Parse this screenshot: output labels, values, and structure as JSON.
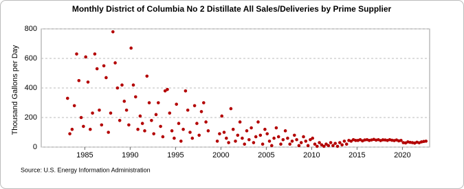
{
  "chart_data": {
    "type": "scatter",
    "title": "Monthly District of Columbia No 2 Distillate All Sales/Deliveries by Prime Supplier",
    "y_label": "Thousand Gallons per Day",
    "source": "Source: U.S. Energy Information Administration",
    "color": "#b30000",
    "grid": true,
    "xlim": [
      1980.2,
      2023
    ],
    "ylim": [
      0,
      800
    ],
    "xticks": [
      1985,
      1990,
      1995,
      2000,
      2005,
      2010,
      2015,
      2020
    ],
    "yticks": [
      0,
      200,
      400,
      600,
      800
    ],
    "x": [
      1983.1,
      1983.35,
      1983.6,
      1983.85,
      1984.1,
      1984.35,
      1984.6,
      1984.85,
      1985.1,
      1985.35,
      1985.6,
      1985.85,
      1986.1,
      1986.35,
      1986.6,
      1986.85,
      1987.1,
      1987.35,
      1987.6,
      1987.85,
      1988.1,
      1988.35,
      1988.6,
      1988.85,
      1989.1,
      1989.35,
      1989.6,
      1989.85,
      1990.1,
      1990.35,
      1990.6,
      1990.85,
      1991.1,
      1991.35,
      1991.6,
      1991.85,
      1992.1,
      1992.35,
      1992.6,
      1992.85,
      1993.1,
      1993.35,
      1993.6,
      1993.85,
      1994.1,
      1994.35,
      1994.6,
      1994.85,
      1995.1,
      1995.35,
      1995.6,
      1995.85,
      1996.1,
      1996.35,
      1996.6,
      1996.85,
      1997.1,
      1997.35,
      1997.6,
      1997.85,
      1998.1,
      1998.35,
      1998.6,
      1999.6,
      1999.85,
      2000.1,
      2000.35,
      2000.6,
      2000.85,
      2001.1,
      2001.35,
      2001.6,
      2001.85,
      2002.1,
      2002.35,
      2002.6,
      2002.85,
      2003.1,
      2003.35,
      2003.6,
      2003.85,
      2004.1,
      2004.35,
      2004.6,
      2004.85,
      2005.1,
      2005.35,
      2005.6,
      2005.85,
      2006.1,
      2006.35,
      2006.6,
      2006.85,
      2007.1,
      2007.35,
      2007.6,
      2007.85,
      2008.1,
      2008.35,
      2008.6,
      2008.85,
      2009.1,
      2009.35,
      2009.6,
      2009.85,
      2010.1,
      2010.35,
      2010.6,
      2010.85,
      2011.1,
      2011.35,
      2011.6,
      2011.85,
      2012.1,
      2012.35,
      2012.6,
      2012.85,
      2013.1,
      2013.35,
      2013.6,
      2013.85,
      2014.1,
      2014.35,
      2014.6,
      2014.85,
      2015.1,
      2015.35,
      2015.6,
      2015.85,
      2016.1,
      2016.35,
      2016.6,
      2016.85,
      2017.1,
      2017.35,
      2017.6,
      2017.85,
      2018.1,
      2018.35,
      2018.6,
      2018.85,
      2019.1,
      2019.35,
      2019.6,
      2019.85,
      2020.1,
      2020.35,
      2020.6,
      2020.85,
      2021.1,
      2021.35,
      2021.6,
      2021.85,
      2022.1,
      2022.35,
      2022.6
    ],
    "values": [
      330,
      90,
      120,
      280,
      630,
      450,
      200,
      140,
      610,
      440,
      120,
      230,
      630,
      530,
      250,
      150,
      550,
      470,
      100,
      230,
      780,
      570,
      400,
      180,
      420,
      310,
      250,
      150,
      670,
      420,
      340,
      120,
      210,
      160,
      110,
      480,
      300,
      180,
      90,
      220,
      300,
      140,
      70,
      380,
      390,
      230,
      110,
      60,
      290,
      160,
      40,
      120,
      380,
      250,
      100,
      60,
      280,
      160,
      80,
      240,
      300,
      170,
      110,
      40,
      90,
      210,
      100,
      60,
      30,
      260,
      120,
      40,
      80,
      170,
      60,
      20,
      110,
      50,
      130,
      30,
      70,
      170,
      80,
      20,
      120,
      90,
      40,
      10,
      60,
      130,
      70,
      20,
      50,
      110,
      60,
      20,
      40,
      80,
      50,
      10,
      30,
      70,
      40,
      10,
      50,
      60,
      20,
      5,
      30,
      15,
      5,
      20,
      10,
      30,
      10,
      25,
      5,
      30,
      15,
      40,
      20,
      45,
      40,
      50,
      45,
      45,
      50,
      42,
      48,
      50,
      45,
      48,
      52,
      47,
      50,
      44,
      49,
      48,
      45,
      50,
      46,
      44,
      48,
      42,
      45,
      30,
      28,
      35,
      32,
      30,
      27,
      33,
      29,
      35,
      38,
      40
    ]
  }
}
